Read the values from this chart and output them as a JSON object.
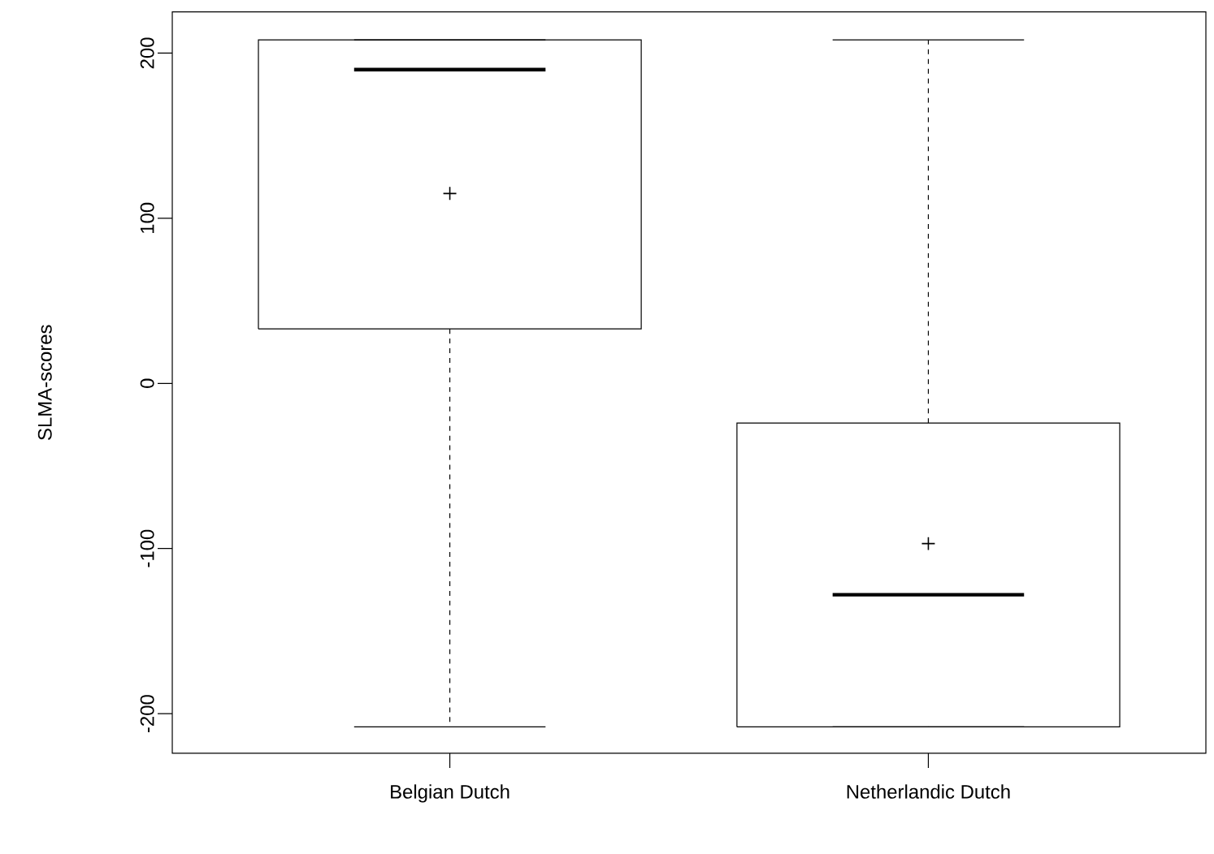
{
  "chart_data": {
    "type": "box",
    "ylabel": "SLMA-scores",
    "categories": [
      "Belgian Dutch",
      "Netherlandic Dutch"
    ],
    "boxes": [
      {
        "low": -208,
        "q1": 33,
        "median": 190,
        "q3": 208,
        "high": 208,
        "mean": 115
      },
      {
        "low": -208,
        "q1": -208,
        "median": -128,
        "q3": -24,
        "high": 208,
        "mean": -97
      }
    ],
    "ylim": [
      -224,
      225
    ],
    "yticks": [
      -200,
      -100,
      0,
      100,
      200
    ]
  }
}
